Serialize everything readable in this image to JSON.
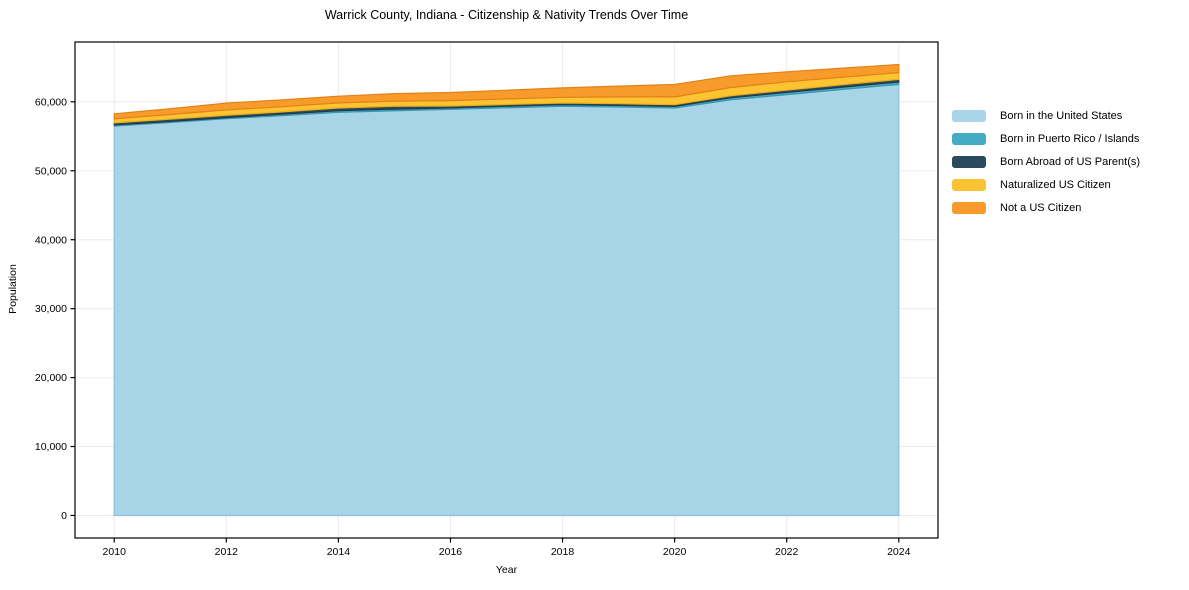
{
  "title": "Warrick County, Indiana - Citizenship & Nativity Trends Over Time",
  "chart_data": {
    "type": "area",
    "stacked": true,
    "title": "Warrick County, Indiana - Citizenship & Nativity Trends Over Time",
    "xlabel": "Year",
    "ylabel": "Population",
    "x": [
      2010,
      2011,
      2012,
      2013,
      2014,
      2015,
      2016,
      2017,
      2018,
      2019,
      2020,
      2021,
      2022,
      2023,
      2024
    ],
    "series": [
      {
        "name": "Born in the United States",
        "color": "#a8d4e8",
        "edge_color": "#8cc2dc",
        "values": [
          56500,
          57000,
          57550,
          58000,
          58480,
          58700,
          58920,
          59140,
          59350,
          59250,
          59100,
          60300,
          61050,
          61800,
          62530
        ]
      },
      {
        "name": "Born in Puerto Rico / Islands",
        "color": "#45abc4",
        "edge_color": "#3797af",
        "values": [
          150,
          160,
          170,
          200,
          250,
          250,
          200,
          220,
          230,
          240,
          240,
          280,
          320,
          340,
          350
        ]
      },
      {
        "name": "Born Abroad of US Parent(s)",
        "color": "#2a4a5e",
        "edge_color": "#203a4b",
        "values": [
          300,
          320,
          330,
          340,
          380,
          400,
          280,
          260,
          250,
          240,
          240,
          300,
          320,
          350,
          380
        ]
      },
      {
        "name": "Naturalized US Citizen",
        "color": "#fcc332",
        "edge_color": "#eaad1c",
        "values": [
          590,
          680,
          780,
          760,
          730,
          760,
          780,
          800,
          830,
          980,
          1130,
          1200,
          1210,
          1100,
          980
        ]
      },
      {
        "name": "Not a US Citizen",
        "color": "#f89b2b",
        "edge_color": "#e28218",
        "values": [
          730,
          850,
          980,
          980,
          980,
          1080,
          1170,
          1270,
          1360,
          1580,
          1800,
          1700,
          1460,
          1300,
          1170
        ]
      }
    ],
    "totals": [
      58270,
      59010,
      59810,
      60280,
      60820,
      61190,
      61350,
      61690,
      62020,
      62290,
      62510,
      63780,
      64360,
      64890,
      65410
    ],
    "xlim": [
      2009.3,
      2024.7
    ],
    "ylim": [
      -3270,
      68680
    ],
    "x_ticks": [
      {
        "value": 2010,
        "label": "2010"
      },
      {
        "value": 2012,
        "label": "2012"
      },
      {
        "value": 2014,
        "label": "2014"
      },
      {
        "value": 2016,
        "label": "2016"
      },
      {
        "value": 2018,
        "label": "2018"
      },
      {
        "value": 2020,
        "label": "2020"
      },
      {
        "value": 2022,
        "label": "2022"
      },
      {
        "value": 2024,
        "label": "2024"
      }
    ],
    "y_ticks": [
      {
        "value": 0,
        "label": "0"
      },
      {
        "value": 10000,
        "label": "10,000"
      },
      {
        "value": 20000,
        "label": "20,000"
      },
      {
        "value": 30000,
        "label": "30,000"
      },
      {
        "value": 40000,
        "label": "40,000"
      },
      {
        "value": 50000,
        "label": "50,000"
      },
      {
        "value": 60000,
        "label": "60,000"
      }
    ],
    "grid": true,
    "grid_color": "#ebebeb",
    "axis_color": "#000000",
    "legend_position": "right-outside"
  }
}
